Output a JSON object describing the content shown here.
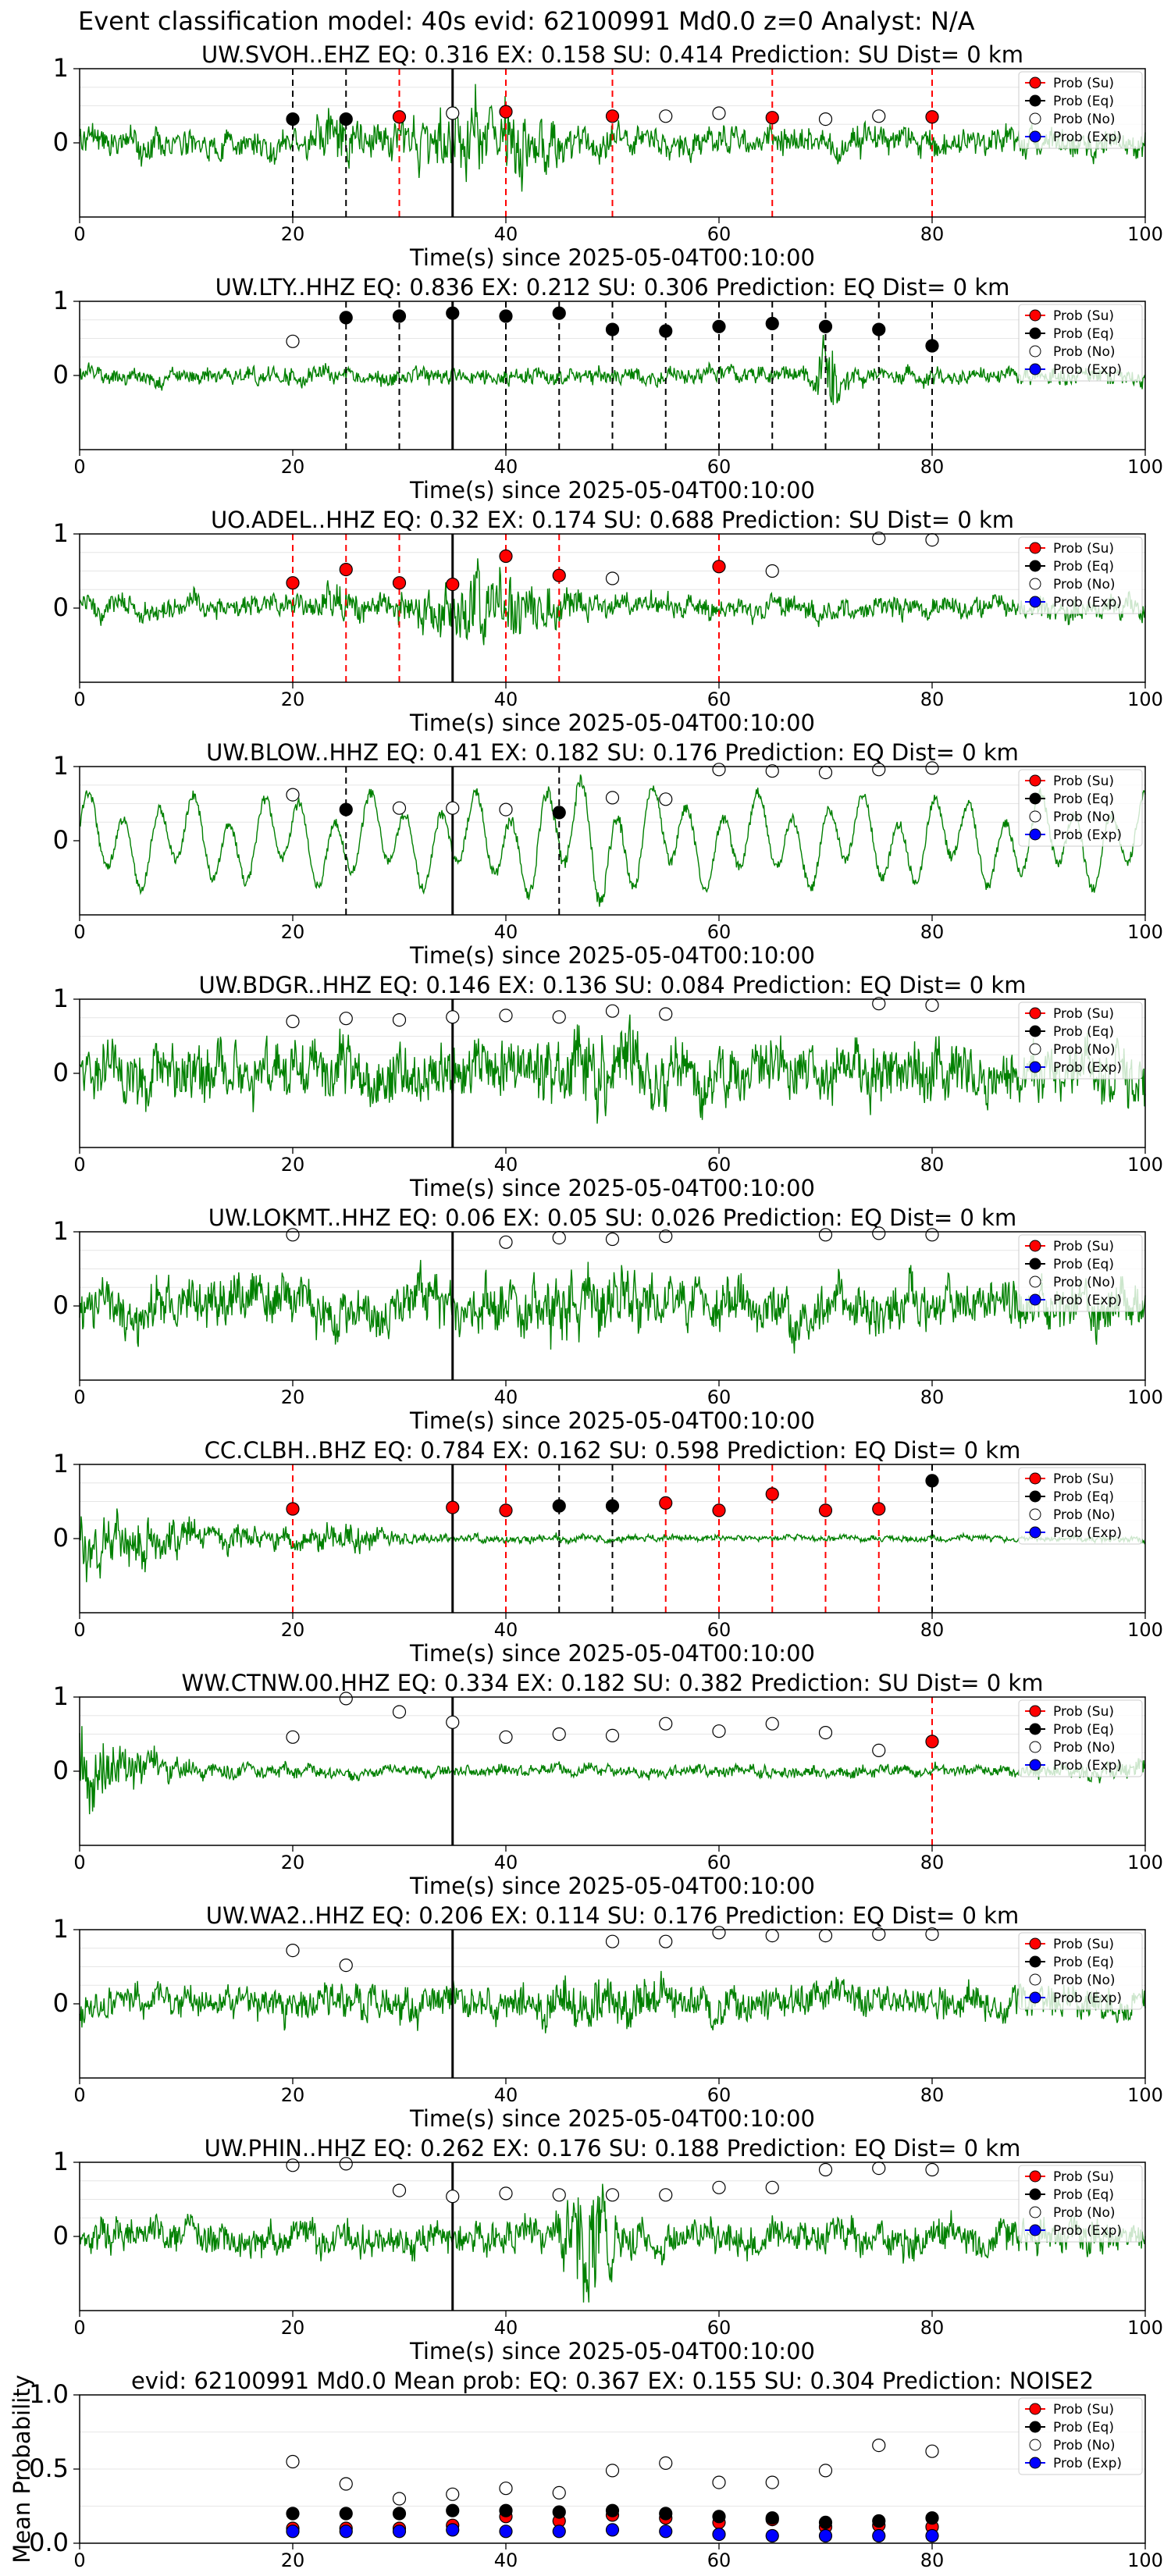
{
  "suptitle": "Event classification model: 40s evid: 62100991 Md0.0 z=0 Analyst: N/A",
  "xlabel": "Time(s) since 2025-05-04T00:10:00",
  "legend_labels": [
    "Prob (Su)",
    "Prob (Eq)",
    "Prob (No)",
    "Prob (Exp)"
  ],
  "colors": {
    "trace": "#008000",
    "su": "#ff0000",
    "eq": "#000000",
    "no": "#ffffff",
    "exp": "#0000ff",
    "su_line": "#ff0000",
    "eq_line": "#000000"
  },
  "chart_data": [
    {
      "type": "line",
      "title": "UW.SVOH..EHZ   EQ: 0.316  EX: 0.158  SU: 0.414   Prediction: SU    Dist= 0 km",
      "xlim": [
        0,
        100
      ],
      "ylim": [
        -1,
        1
      ],
      "xticks": [
        0,
        20,
        40,
        60,
        80,
        100
      ],
      "yticks": [
        0,
        1
      ],
      "event_line": 35,
      "trace_amp": 0.25,
      "trace_type": "burst",
      "seed": 1,
      "dots": [
        {
          "x": 20,
          "y": 0.32,
          "c": "eq"
        },
        {
          "x": 25,
          "y": 0.32,
          "c": "eq"
        },
        {
          "x": 30,
          "y": 0.35,
          "c": "su"
        },
        {
          "x": 35,
          "y": 0.4,
          "c": "no"
        },
        {
          "x": 40,
          "y": 0.42,
          "c": "su"
        },
        {
          "x": 50,
          "y": 0.36,
          "c": "su"
        },
        {
          "x": 55,
          "y": 0.36,
          "c": "no"
        },
        {
          "x": 60,
          "y": 0.4,
          "c": "no"
        },
        {
          "x": 65,
          "y": 0.34,
          "c": "su"
        },
        {
          "x": 70,
          "y": 0.32,
          "c": "no"
        },
        {
          "x": 75,
          "y": 0.36,
          "c": "no"
        },
        {
          "x": 80,
          "y": 0.35,
          "c": "su"
        }
      ],
      "vlines": [
        {
          "x": 20,
          "c": "eq"
        },
        {
          "x": 25,
          "c": "eq"
        },
        {
          "x": 30,
          "c": "su"
        },
        {
          "x": 40,
          "c": "su"
        },
        {
          "x": 50,
          "c": "su"
        },
        {
          "x": 65,
          "c": "su"
        },
        {
          "x": 80,
          "c": "su"
        }
      ]
    },
    {
      "type": "line",
      "title": "UW.LTY..HHZ   EQ: 0.836  EX: 0.212  SU: 0.306   Prediction: EQ    Dist= 0 km",
      "xlim": [
        0,
        100
      ],
      "ylim": [
        -1,
        1
      ],
      "xticks": [
        0,
        20,
        40,
        60,
        80,
        100
      ],
      "yticks": [
        0,
        1
      ],
      "event_line": 35,
      "trace_amp": 0.15,
      "trace_type": "lowfreq_burst",
      "seed": 2,
      "dots": [
        {
          "x": 20,
          "y": 0.46,
          "c": "no"
        },
        {
          "x": 25,
          "y": 0.78,
          "c": "eq"
        },
        {
          "x": 30,
          "y": 0.8,
          "c": "eq"
        },
        {
          "x": 35,
          "y": 0.84,
          "c": "eq"
        },
        {
          "x": 40,
          "y": 0.8,
          "c": "eq"
        },
        {
          "x": 45,
          "y": 0.84,
          "c": "eq"
        },
        {
          "x": 50,
          "y": 0.62,
          "c": "eq"
        },
        {
          "x": 55,
          "y": 0.6,
          "c": "eq"
        },
        {
          "x": 60,
          "y": 0.66,
          "c": "eq"
        },
        {
          "x": 65,
          "y": 0.7,
          "c": "eq"
        },
        {
          "x": 70,
          "y": 0.66,
          "c": "eq"
        },
        {
          "x": 75,
          "y": 0.62,
          "c": "eq"
        },
        {
          "x": 80,
          "y": 0.4,
          "c": "eq"
        }
      ],
      "vlines": [
        {
          "x": 25,
          "c": "eq"
        },
        {
          "x": 30,
          "c": "eq"
        },
        {
          "x": 40,
          "c": "eq"
        },
        {
          "x": 45,
          "c": "eq"
        },
        {
          "x": 50,
          "c": "eq"
        },
        {
          "x": 55,
          "c": "eq"
        },
        {
          "x": 60,
          "c": "eq"
        },
        {
          "x": 65,
          "c": "eq"
        },
        {
          "x": 70,
          "c": "eq"
        },
        {
          "x": 75,
          "c": "eq"
        },
        {
          "x": 80,
          "c": "eq"
        }
      ]
    },
    {
      "type": "line",
      "title": "UO.ADEL..HHZ   EQ: 0.32  EX: 0.174  SU: 0.688   Prediction: SU    Dist= 0 km",
      "xlim": [
        0,
        100
      ],
      "ylim": [
        -1,
        1
      ],
      "xticks": [
        0,
        20,
        40,
        60,
        80,
        100
      ],
      "yticks": [
        0,
        1
      ],
      "event_line": 35,
      "trace_amp": 0.2,
      "trace_type": "burst",
      "seed": 3,
      "dots": [
        {
          "x": 20,
          "y": 0.34,
          "c": "su"
        },
        {
          "x": 25,
          "y": 0.52,
          "c": "su"
        },
        {
          "x": 30,
          "y": 0.34,
          "c": "su"
        },
        {
          "x": 35,
          "y": 0.32,
          "c": "su"
        },
        {
          "x": 40,
          "y": 0.7,
          "c": "su"
        },
        {
          "x": 45,
          "y": 0.44,
          "c": "su"
        },
        {
          "x": 50,
          "y": 0.4,
          "c": "no"
        },
        {
          "x": 60,
          "y": 0.56,
          "c": "su"
        },
        {
          "x": 65,
          "y": 0.5,
          "c": "no"
        },
        {
          "x": 75,
          "y": 0.94,
          "c": "no"
        },
        {
          "x": 80,
          "y": 0.92,
          "c": "no"
        }
      ],
      "vlines": [
        {
          "x": 20,
          "c": "su"
        },
        {
          "x": 25,
          "c": "su"
        },
        {
          "x": 30,
          "c": "su"
        },
        {
          "x": 40,
          "c": "su"
        },
        {
          "x": 45,
          "c": "su"
        },
        {
          "x": 60,
          "c": "su"
        }
      ]
    },
    {
      "type": "line",
      "title": "UW.BLOW..HHZ   EQ: 0.41  EX: 0.182  SU: 0.176   Prediction: EQ    Dist= 0 km",
      "xlim": [
        0,
        100
      ],
      "ylim": [
        -1,
        1
      ],
      "xticks": [
        0,
        20,
        40,
        60,
        80,
        100
      ],
      "yticks": [
        0,
        1
      ],
      "event_line": 35,
      "trace_amp": 0.6,
      "trace_type": "wave",
      "seed": 4,
      "dots": [
        {
          "x": 20,
          "y": 0.62,
          "c": "no"
        },
        {
          "x": 25,
          "y": 0.42,
          "c": "eq"
        },
        {
          "x": 30,
          "y": 0.44,
          "c": "no"
        },
        {
          "x": 35,
          "y": 0.44,
          "c": "no"
        },
        {
          "x": 40,
          "y": 0.42,
          "c": "no"
        },
        {
          "x": 45,
          "y": 0.38,
          "c": "eq"
        },
        {
          "x": 50,
          "y": 0.58,
          "c": "no"
        },
        {
          "x": 55,
          "y": 0.56,
          "c": "no"
        },
        {
          "x": 60,
          "y": 0.96,
          "c": "no"
        },
        {
          "x": 65,
          "y": 0.94,
          "c": "no"
        },
        {
          "x": 70,
          "y": 0.92,
          "c": "no"
        },
        {
          "x": 75,
          "y": 0.96,
          "c": "no"
        },
        {
          "x": 80,
          "y": 0.98,
          "c": "no"
        }
      ],
      "vlines": [
        {
          "x": 25,
          "c": "eq"
        },
        {
          "x": 45,
          "c": "eq"
        }
      ]
    },
    {
      "type": "line",
      "title": "UW.BDGR..HHZ   EQ: 0.146  EX: 0.136  SU: 0.084   Prediction: EQ    Dist= 0 km",
      "xlim": [
        0,
        100
      ],
      "ylim": [
        -1,
        1
      ],
      "xticks": [
        0,
        20,
        40,
        60,
        80,
        100
      ],
      "yticks": [
        0,
        1
      ],
      "event_line": 35,
      "trace_amp": 0.5,
      "trace_type": "noise",
      "seed": 5,
      "dots": [
        {
          "x": 20,
          "y": 0.7,
          "c": "no"
        },
        {
          "x": 25,
          "y": 0.74,
          "c": "no"
        },
        {
          "x": 30,
          "y": 0.72,
          "c": "no"
        },
        {
          "x": 35,
          "y": 0.76,
          "c": "no"
        },
        {
          "x": 40,
          "y": 0.78,
          "c": "no"
        },
        {
          "x": 45,
          "y": 0.76,
          "c": "no"
        },
        {
          "x": 50,
          "y": 0.84,
          "c": "no"
        },
        {
          "x": 55,
          "y": 0.8,
          "c": "no"
        },
        {
          "x": 75,
          "y": 0.94,
          "c": "no"
        },
        {
          "x": 80,
          "y": 0.92,
          "c": "no"
        }
      ],
      "vlines": []
    },
    {
      "type": "line",
      "title": "UW.LOKMT..HHZ   EQ: 0.06  EX: 0.05  SU: 0.026   Prediction: EQ    Dist= 0 km",
      "xlim": [
        0,
        100
      ],
      "ylim": [
        -1,
        1
      ],
      "xticks": [
        0,
        20,
        40,
        60,
        80,
        100
      ],
      "yticks": [
        0,
        1
      ],
      "event_line": 35,
      "trace_amp": 0.45,
      "trace_type": "noise",
      "seed": 6,
      "dots": [
        {
          "x": 20,
          "y": 0.96,
          "c": "no"
        },
        {
          "x": 40,
          "y": 0.86,
          "c": "no"
        },
        {
          "x": 45,
          "y": 0.92,
          "c": "no"
        },
        {
          "x": 50,
          "y": 0.9,
          "c": "no"
        },
        {
          "x": 55,
          "y": 0.94,
          "c": "no"
        },
        {
          "x": 70,
          "y": 0.96,
          "c": "no"
        },
        {
          "x": 75,
          "y": 0.98,
          "c": "no"
        },
        {
          "x": 80,
          "y": 0.96,
          "c": "no"
        }
      ],
      "vlines": []
    },
    {
      "type": "line",
      "title": "CC.CLBH..BHZ   EQ: 0.784  EX: 0.162  SU: 0.598   Prediction: EQ    Dist= 0 km",
      "xlim": [
        0,
        100
      ],
      "ylim": [
        -1,
        1
      ],
      "xticks": [
        0,
        20,
        40,
        60,
        80,
        100
      ],
      "yticks": [
        0,
        1
      ],
      "event_line": 35,
      "trace_amp": 0.35,
      "trace_type": "decay",
      "seed": 7,
      "dots": [
        {
          "x": 20,
          "y": 0.4,
          "c": "su"
        },
        {
          "x": 35,
          "y": 0.42,
          "c": "su"
        },
        {
          "x": 40,
          "y": 0.38,
          "c": "su"
        },
        {
          "x": 45,
          "y": 0.44,
          "c": "eq"
        },
        {
          "x": 50,
          "y": 0.44,
          "c": "eq"
        },
        {
          "x": 55,
          "y": 0.48,
          "c": "su"
        },
        {
          "x": 60,
          "y": 0.38,
          "c": "su"
        },
        {
          "x": 65,
          "y": 0.6,
          "c": "su"
        },
        {
          "x": 70,
          "y": 0.38,
          "c": "su"
        },
        {
          "x": 75,
          "y": 0.4,
          "c": "su"
        },
        {
          "x": 80,
          "y": 0.78,
          "c": "eq"
        }
      ],
      "vlines": [
        {
          "x": 20,
          "c": "su"
        },
        {
          "x": 40,
          "c": "su"
        },
        {
          "x": 45,
          "c": "eq"
        },
        {
          "x": 50,
          "c": "eq"
        },
        {
          "x": 55,
          "c": "su"
        },
        {
          "x": 60,
          "c": "su"
        },
        {
          "x": 65,
          "c": "su"
        },
        {
          "x": 70,
          "c": "su"
        },
        {
          "x": 75,
          "c": "su"
        },
        {
          "x": 80,
          "c": "eq"
        }
      ]
    },
    {
      "type": "line",
      "title": "WW.CTNW.00.HHZ   EQ: 0.334  EX: 0.182  SU: 0.382   Prediction: SU    Dist= 0 km",
      "xlim": [
        0,
        100
      ],
      "ylim": [
        -1,
        1
      ],
      "xticks": [
        0,
        20,
        40,
        60,
        80,
        100
      ],
      "yticks": [
        0,
        1
      ],
      "event_line": 35,
      "trace_amp": 0.3,
      "trace_type": "decay_tail",
      "seed": 8,
      "dots": [
        {
          "x": 20,
          "y": 0.46,
          "c": "no"
        },
        {
          "x": 25,
          "y": 0.98,
          "c": "no"
        },
        {
          "x": 30,
          "y": 0.8,
          "c": "no"
        },
        {
          "x": 35,
          "y": 0.66,
          "c": "no"
        },
        {
          "x": 40,
          "y": 0.46,
          "c": "no"
        },
        {
          "x": 45,
          "y": 0.5,
          "c": "no"
        },
        {
          "x": 50,
          "y": 0.48,
          "c": "no"
        },
        {
          "x": 55,
          "y": 0.64,
          "c": "no"
        },
        {
          "x": 60,
          "y": 0.54,
          "c": "no"
        },
        {
          "x": 65,
          "y": 0.64,
          "c": "no"
        },
        {
          "x": 70,
          "y": 0.52,
          "c": "no"
        },
        {
          "x": 75,
          "y": 0.28,
          "c": "no"
        },
        {
          "x": 80,
          "y": 0.4,
          "c": "su"
        }
      ],
      "vlines": [
        {
          "x": 80,
          "c": "su"
        }
      ]
    },
    {
      "type": "line",
      "title": "UW.WA2..HHZ   EQ: 0.206  EX: 0.114  SU: 0.176   Prediction: EQ    Dist= 0 km",
      "xlim": [
        0,
        100
      ],
      "ylim": [
        -1,
        1
      ],
      "xticks": [
        0,
        20,
        40,
        60,
        80,
        100
      ],
      "yticks": [
        0,
        1
      ],
      "event_line": 35,
      "trace_amp": 0.3,
      "trace_type": "noise",
      "seed": 9,
      "dots": [
        {
          "x": 20,
          "y": 0.72,
          "c": "no"
        },
        {
          "x": 25,
          "y": 0.52,
          "c": "no"
        },
        {
          "x": 50,
          "y": 0.84,
          "c": "no"
        },
        {
          "x": 55,
          "y": 0.84,
          "c": "no"
        },
        {
          "x": 60,
          "y": 0.96,
          "c": "no"
        },
        {
          "x": 65,
          "y": 0.92,
          "c": "no"
        },
        {
          "x": 70,
          "y": 0.92,
          "c": "no"
        },
        {
          "x": 75,
          "y": 0.94,
          "c": "no"
        },
        {
          "x": 80,
          "y": 0.94,
          "c": "no"
        }
      ],
      "vlines": []
    },
    {
      "type": "line",
      "title": "UW.PHIN..HHZ   EQ: 0.262  EX: 0.176  SU: 0.188   Prediction: EQ    Dist= 0 km",
      "xlim": [
        0,
        100
      ],
      "ylim": [
        -1,
        1
      ],
      "xticks": [
        0,
        20,
        40,
        60,
        80,
        100
      ],
      "yticks": [
        0,
        1
      ],
      "event_line": 35,
      "trace_amp": 0.3,
      "trace_type": "burst_mid",
      "seed": 10,
      "dots": [
        {
          "x": 20,
          "y": 0.96,
          "c": "no"
        },
        {
          "x": 25,
          "y": 0.98,
          "c": "no"
        },
        {
          "x": 30,
          "y": 0.62,
          "c": "no"
        },
        {
          "x": 35,
          "y": 0.54,
          "c": "no"
        },
        {
          "x": 40,
          "y": 0.58,
          "c": "no"
        },
        {
          "x": 45,
          "y": 0.56,
          "c": "no"
        },
        {
          "x": 50,
          "y": 0.56,
          "c": "no"
        },
        {
          "x": 55,
          "y": 0.56,
          "c": "no"
        },
        {
          "x": 60,
          "y": 0.66,
          "c": "no"
        },
        {
          "x": 65,
          "y": 0.66,
          "c": "no"
        },
        {
          "x": 70,
          "y": 0.9,
          "c": "no"
        },
        {
          "x": 75,
          "y": 0.92,
          "c": "no"
        },
        {
          "x": 80,
          "y": 0.9,
          "c": "no"
        }
      ],
      "vlines": []
    },
    {
      "type": "scatter",
      "title": "evid: 62100991  Md0.0   Mean prob:   EQ: 0.367  EX: 0.155  SU: 0.304   Prediction: NOISE2",
      "ylabel": "Mean Probability",
      "xlim": [
        0,
        100
      ],
      "ylim": [
        0,
        1
      ],
      "xticks": [
        0,
        20,
        40,
        60,
        80,
        100
      ],
      "yticks": [
        0.0,
        0.5,
        1.0
      ],
      "x": [
        20,
        25,
        30,
        35,
        40,
        45,
        50,
        55,
        60,
        65,
        70,
        75,
        80
      ],
      "series": [
        {
          "name": "Prob (Su)",
          "c": "su",
          "values": [
            0.1,
            0.1,
            0.1,
            0.12,
            0.18,
            0.15,
            0.19,
            0.17,
            0.14,
            0.16,
            0.11,
            0.12,
            0.11
          ]
        },
        {
          "name": "Prob (Eq)",
          "c": "eq",
          "values": [
            0.2,
            0.2,
            0.2,
            0.22,
            0.22,
            0.21,
            0.22,
            0.2,
            0.18,
            0.17,
            0.14,
            0.15,
            0.17
          ]
        },
        {
          "name": "Prob (No)",
          "c": "no",
          "values": [
            0.55,
            0.4,
            0.3,
            0.33,
            0.37,
            0.34,
            0.49,
            0.54,
            0.41,
            0.41,
            0.49,
            0.66,
            0.62
          ]
        },
        {
          "name": "Prob (Exp)",
          "c": "exp",
          "values": [
            0.08,
            0.08,
            0.08,
            0.09,
            0.08,
            0.08,
            0.09,
            0.08,
            0.06,
            0.05,
            0.05,
            0.05,
            0.05
          ]
        }
      ]
    }
  ]
}
